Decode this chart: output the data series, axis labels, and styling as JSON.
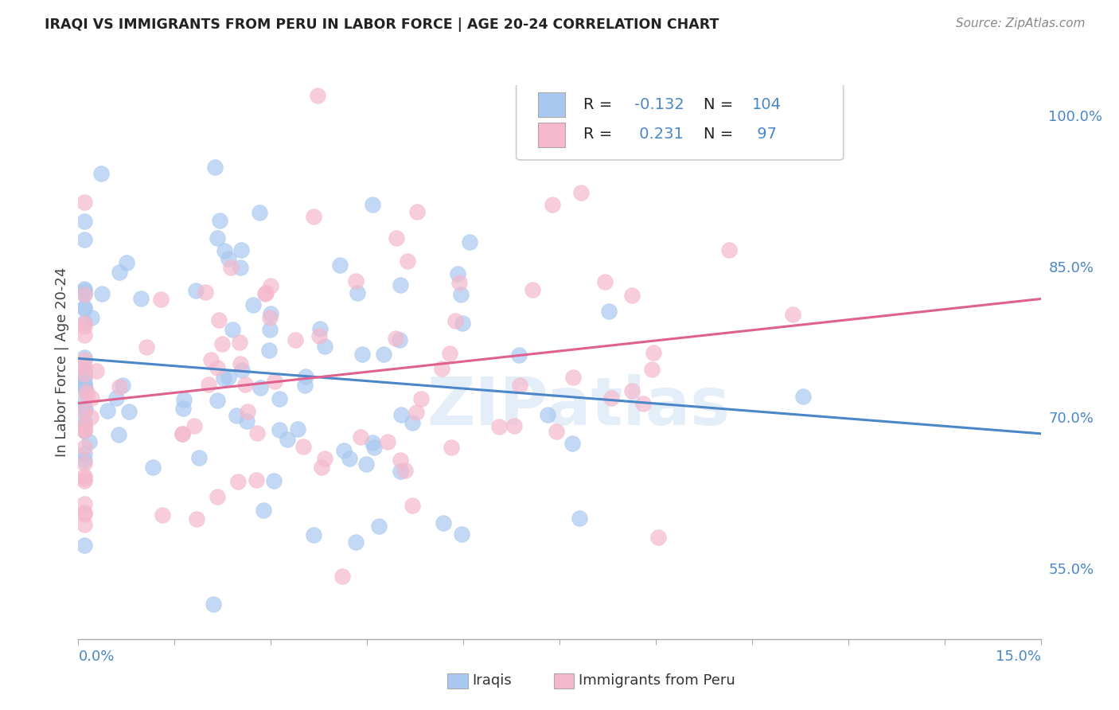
{
  "title": "IRAQI VS IMMIGRANTS FROM PERU IN LABOR FORCE | AGE 20-24 CORRELATION CHART",
  "source": "Source: ZipAtlas.com",
  "ylabel": "In Labor Force | Age 20-24",
  "xlim": [
    0.0,
    15.0
  ],
  "ylim": [
    48.0,
    103.0
  ],
  "right_yticks": [
    55.0,
    70.0,
    85.0,
    100.0
  ],
  "blue_color": "#a8c8f0",
  "pink_color": "#f5b8cc",
  "blue_line_color": "#4a86c8",
  "pink_line_color": "#e06090",
  "watermark": "ZIPatlas",
  "blue_r": -0.132,
  "blue_n": 104,
  "pink_r": 0.231,
  "pink_n": 97,
  "grid_color": "#cccccc",
  "title_color": "#222222",
  "axis_label_color": "#4a86c8"
}
